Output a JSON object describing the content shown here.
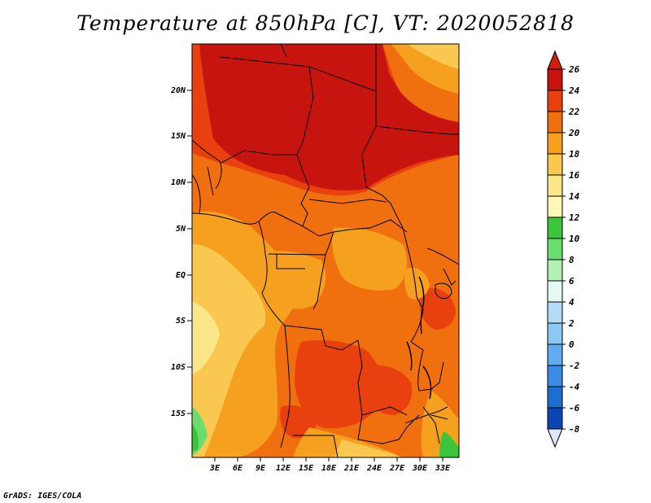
{
  "title": "Temperature at 850hPa [C], VT: 2020052818",
  "credit": "GrADS: IGES/COLA",
  "lat_labels": [
    "20N",
    "15N",
    "10N",
    "5N",
    "EQ",
    "5S",
    "10S",
    "15S"
  ],
  "lon_labels": [
    "3E",
    "6E",
    "9E",
    "12E",
    "15E",
    "18E",
    "21E",
    "24E",
    "27E",
    "30E",
    "33E"
  ],
  "colorbar": {
    "levels": [
      {
        "label": "26",
        "color": "#c8140f"
      },
      {
        "label": "24",
        "color": "#e8400f"
      },
      {
        "label": "22",
        "color": "#f0700f"
      },
      {
        "label": "20",
        "color": "#f6a020"
      },
      {
        "label": "18",
        "color": "#fac850"
      },
      {
        "label": "16",
        "color": "#fce68a"
      },
      {
        "label": "14",
        "color": "#fef8b6"
      },
      {
        "label": "12",
        "color": "#3cc43c"
      },
      {
        "label": "10",
        "color": "#6cdc6c"
      },
      {
        "label": "8",
        "color": "#b4f0b4"
      },
      {
        "label": "6",
        "color": "#e4f8f4"
      },
      {
        "label": "4",
        "color": "#b4dcf8"
      },
      {
        "label": "2",
        "color": "#8cc8f4"
      },
      {
        "label": "0",
        "color": "#64aaf0"
      },
      {
        "label": "-2",
        "color": "#3c8ce6"
      },
      {
        "label": "-4",
        "color": "#1e6ed2"
      },
      {
        "label": "-6",
        "color": "#0a46b4"
      },
      {
        "label": "-8",
        "color": "#0a1e8c"
      }
    ],
    "top_color": "#d21e0f",
    "bottom_color": "#dce6fa"
  }
}
